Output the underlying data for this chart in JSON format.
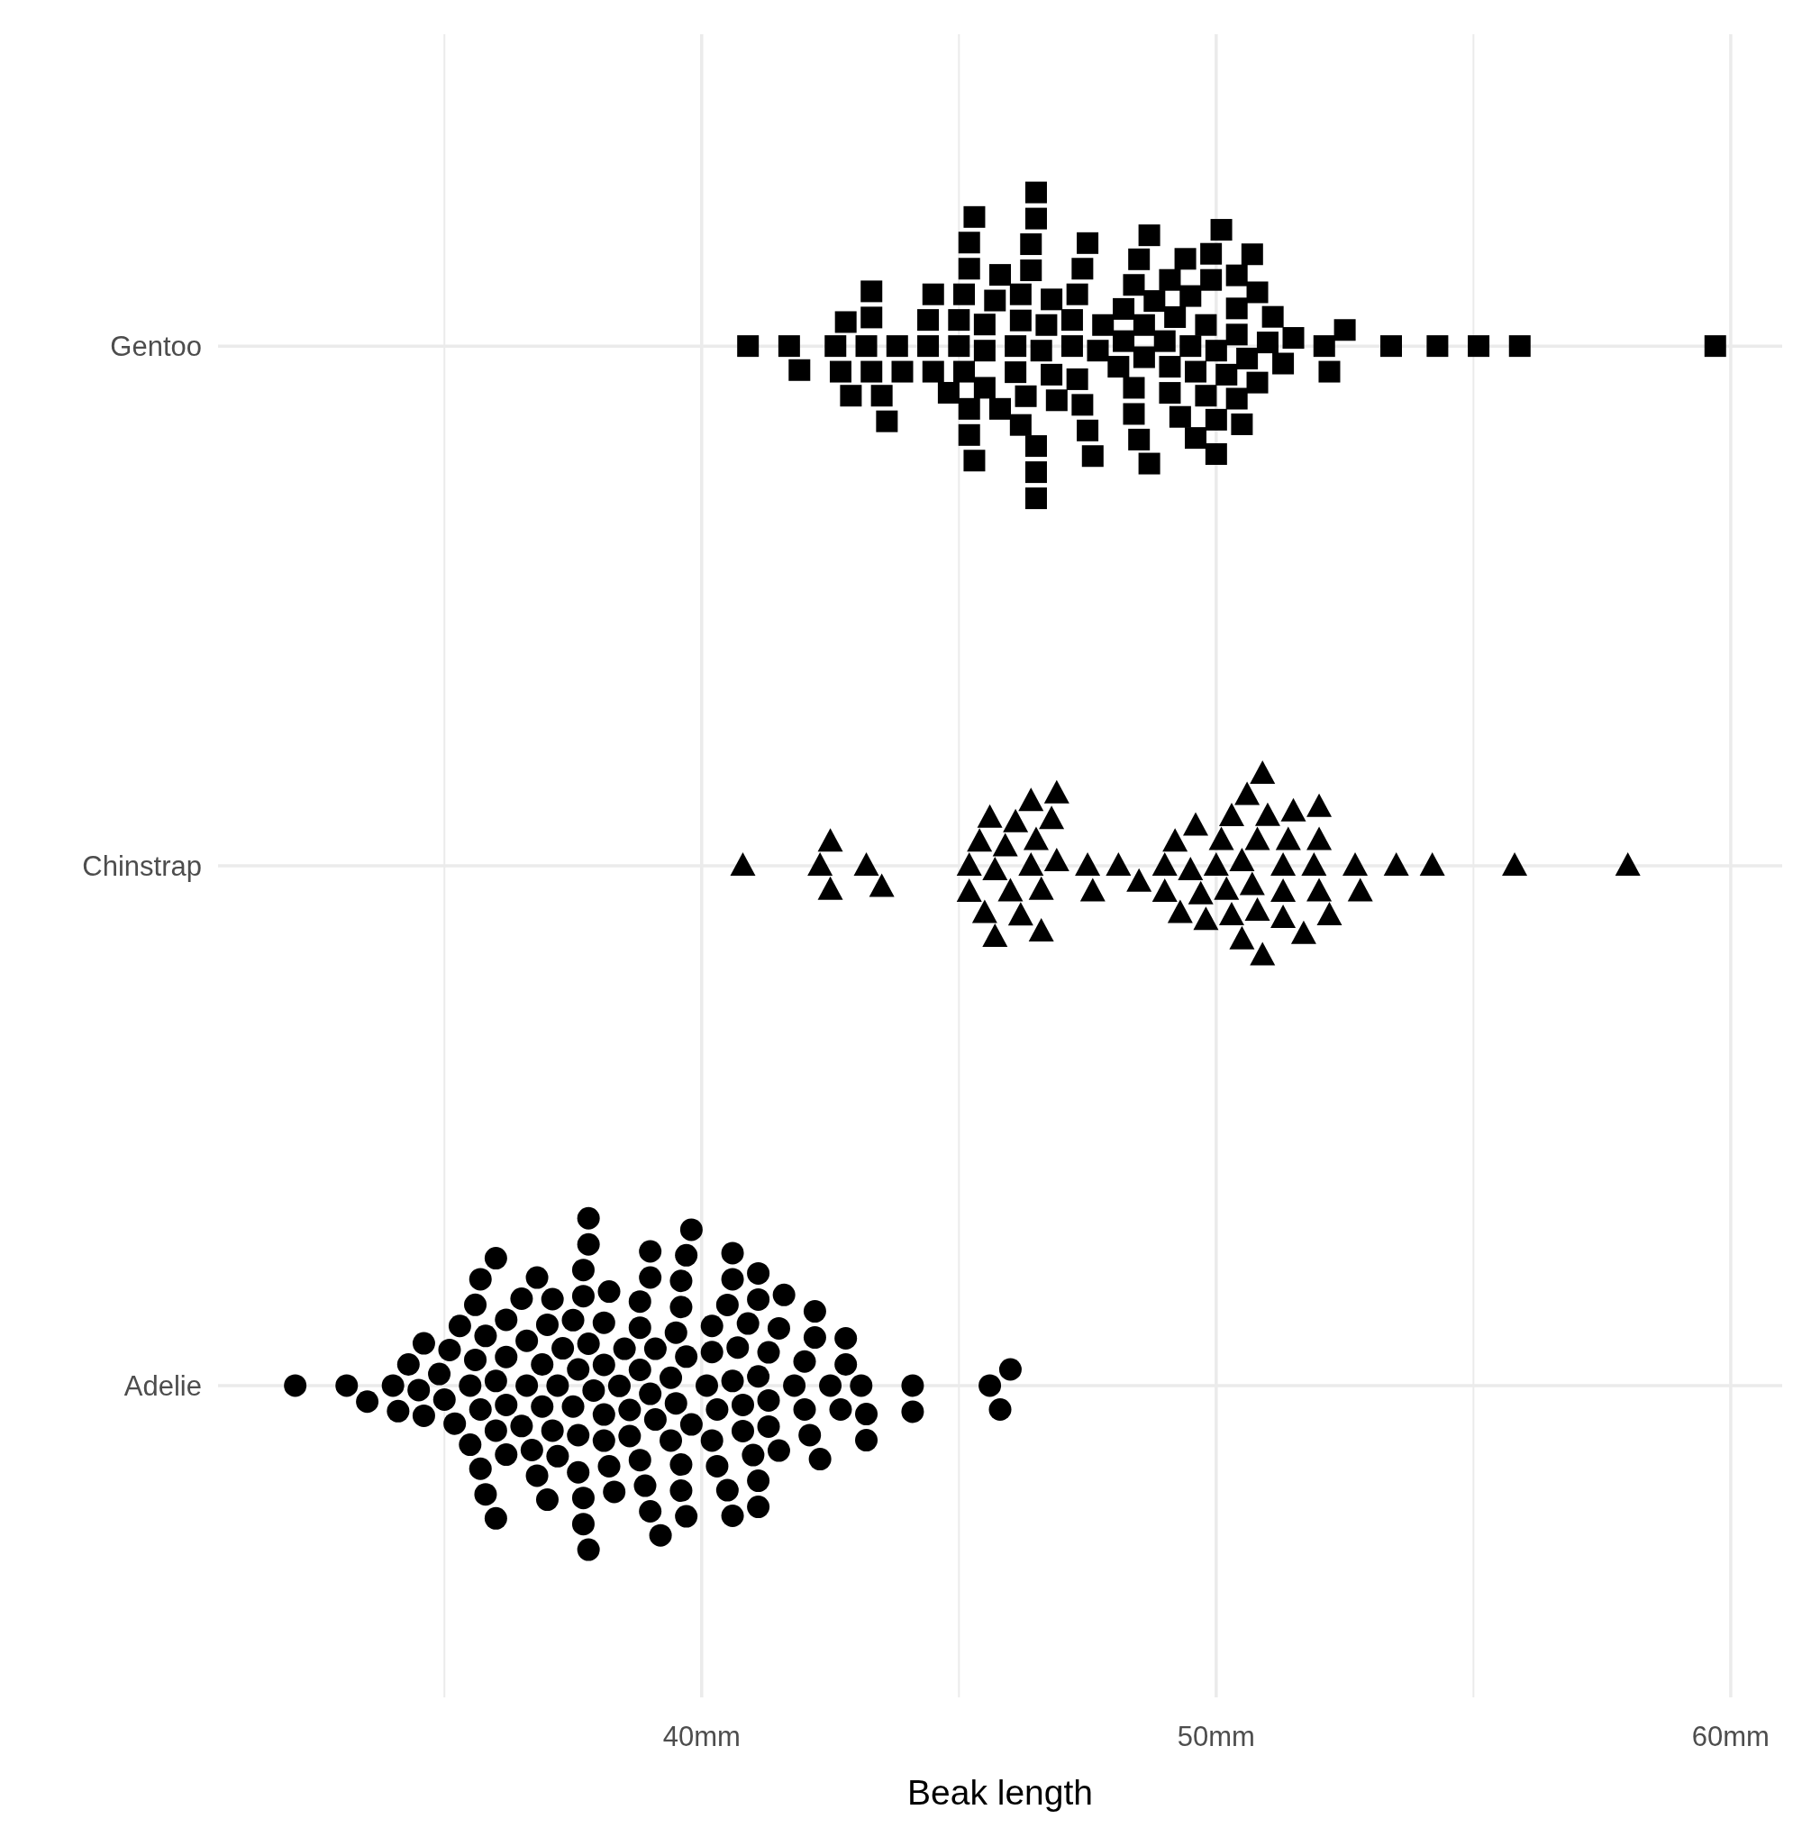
{
  "chart_data": {
    "type": "scatter",
    "orientation": "horizontal",
    "xlabel": "Beak length",
    "categories": [
      "Gentoo",
      "Chinstrap",
      "Adelie"
    ],
    "xlim": [
      30.6,
      61
    ],
    "xticks": [
      {
        "value": 35,
        "label": null
      },
      {
        "value": 40,
        "label": "40mm"
      },
      {
        "value": 45,
        "label": null
      },
      {
        "value": 50,
        "label": "50mm"
      },
      {
        "value": 55,
        "label": null
      },
      {
        "value": 60,
        "label": "60mm"
      }
    ],
    "grid": true,
    "series": [
      {
        "color": "#000000",
        "marker": "square",
        "x": [
          "Gentoo",
          "Gentoo",
          "Gentoo",
          "Gentoo",
          "Gentoo",
          "Gentoo",
          "Gentoo",
          "Gentoo",
          "Gentoo",
          "Gentoo",
          "Gentoo",
          "Gentoo",
          "Gentoo",
          "Gentoo",
          "Gentoo",
          "Gentoo",
          "Gentoo",
          "Gentoo",
          "Gentoo",
          "Gentoo",
          "Gentoo",
          "Gentoo",
          "Gentoo",
          "Gentoo",
          "Gentoo",
          "Gentoo",
          "Gentoo",
          "Gentoo",
          "Gentoo",
          "Gentoo",
          "Gentoo",
          "Gentoo",
          "Gentoo",
          "Gentoo",
          "Gentoo",
          "Gentoo",
          "Gentoo",
          "Gentoo",
          "Gentoo",
          "Gentoo",
          "Gentoo",
          "Gentoo",
          "Gentoo",
          "Gentoo",
          "Gentoo",
          "Gentoo",
          "Gentoo",
          "Gentoo",
          "Gentoo",
          "Gentoo",
          "Gentoo",
          "Gentoo",
          "Gentoo",
          "Gentoo",
          "Gentoo",
          "Gentoo",
          "Gentoo",
          "Gentoo",
          "Gentoo",
          "Gentoo",
          "Gentoo",
          "Gentoo",
          "Gentoo",
          "Gentoo",
          "Gentoo",
          "Gentoo",
          "Gentoo",
          "Gentoo",
          "Gentoo",
          "Gentoo",
          "Gentoo",
          "Gentoo",
          "Gentoo",
          "Gentoo",
          "Gentoo",
          "Gentoo",
          "Gentoo",
          "Gentoo",
          "Gentoo",
          "Gentoo",
          "Gentoo",
          "Gentoo",
          "Gentoo",
          "Gentoo",
          "Gentoo",
          "Gentoo",
          "Gentoo",
          "Gentoo",
          "Gentoo",
          "Gentoo",
          "Gentoo",
          "Gentoo",
          "Gentoo",
          "Gentoo",
          "Gentoo",
          "Gentoo",
          "Gentoo",
          "Gentoo",
          "Gentoo",
          "Gentoo",
          "Gentoo",
          "Gentoo",
          "Gentoo",
          "Gentoo",
          "Gentoo",
          "Gentoo",
          "Gentoo",
          "Gentoo",
          "Gentoo",
          "Gentoo",
          "Gentoo",
          "Gentoo",
          "Gentoo",
          "Gentoo",
          "Gentoo",
          "Gentoo",
          "Gentoo",
          "Gentoo",
          "Gentoo"
        ],
        "values": [
          45.3,
          46.3,
          49.8,
          45.8,
          46.7,
          47.3,
          48.6,
          49.1,
          45.0,
          45.2,
          46.5,
          46.9,
          50.2,
          49.5,
          45.5,
          46.5,
          48.1,
          48.4,
          48.8,
          50.8,
          50.4,
          45.2,
          46.2,
          46.5,
          47.2,
          47.5,
          49.6,
          50.0,
          50.6,
          43.8,
          42.9,
          43.3,
          44.4,
          44.8,
          45.5,
          46.8,
          47.7,
          48.5,
          49.1,
          50.0,
          50.7,
          51.5,
          43.5,
          41.9,
          42.7,
          43.3,
          44.4,
          45.2,
          46.1,
          46.4,
          48.2,
          48.7,
          49.3,
          50.4,
          51.1,
          52.2,
          53.4,
          55.1,
          55.9,
          40.9,
          41.7,
          42.8,
          43.6,
          45.1,
          46.2,
          47.3,
          47.5,
          48.5,
          49.6,
          50.0,
          50.8,
          52.5,
          54.3,
          59.7,
          42.6,
          43.3,
          44.5,
          45.7,
          46.6,
          47.8,
          48.4,
          49.1,
          50.1,
          50.5,
          51.3,
          52.1,
          49.4,
          43.2,
          43.9,
          44.5,
          45.1,
          46.1,
          46.5,
          47.4,
          48.6,
          49.9,
          50.4,
          51.0,
          49.5,
          45.2,
          46.2,
          47.2,
          47.6,
          48.4,
          49.0,
          49.9,
          50.4,
          45.5,
          46.5,
          46.8,
          48.2,
          49.2,
          45.0,
          47.4,
          48.7,
          49.8,
          45.8,
          46.4,
          45.3
        ]
      },
      {
        "color": "#000000",
        "marker": "triangle",
        "x": [
          "Chinstrap",
          "Chinstrap",
          "Chinstrap",
          "Chinstrap",
          "Chinstrap",
          "Chinstrap",
          "Chinstrap",
          "Chinstrap",
          "Chinstrap",
          "Chinstrap",
          "Chinstrap",
          "Chinstrap",
          "Chinstrap",
          "Chinstrap",
          "Chinstrap",
          "Chinstrap",
          "Chinstrap",
          "Chinstrap",
          "Chinstrap",
          "Chinstrap",
          "Chinstrap",
          "Chinstrap",
          "Chinstrap",
          "Chinstrap",
          "Chinstrap",
          "Chinstrap",
          "Chinstrap",
          "Chinstrap",
          "Chinstrap",
          "Chinstrap",
          "Chinstrap",
          "Chinstrap",
          "Chinstrap",
          "Chinstrap",
          "Chinstrap",
          "Chinstrap",
          "Chinstrap",
          "Chinstrap",
          "Chinstrap",
          "Chinstrap",
          "Chinstrap",
          "Chinstrap",
          "Chinstrap",
          "Chinstrap",
          "Chinstrap",
          "Chinstrap",
          "Chinstrap",
          "Chinstrap",
          "Chinstrap",
          "Chinstrap",
          "Chinstrap",
          "Chinstrap",
          "Chinstrap",
          "Chinstrap",
          "Chinstrap",
          "Chinstrap",
          "Chinstrap",
          "Chinstrap",
          "Chinstrap",
          "Chinstrap",
          "Chinstrap",
          "Chinstrap",
          "Chinstrap",
          "Chinstrap",
          "Chinstrap",
          "Chinstrap",
          "Chinstrap",
          "Chinstrap"
        ],
        "values": [
          50.8,
          51.4,
          46.0,
          50.1,
          50.5,
          46.8,
          51.0,
          49.0,
          52.0,
          45.6,
          46.4,
          45.2,
          49.6,
          50.6,
          51.3,
          52.0,
          52.7,
          45.7,
          47.6,
          46.6,
          49.8,
          48.5,
          50.3,
          51.7,
          42.5,
          43.2,
          45.4,
          46.2,
          46.9,
          50.9,
          49.3,
          40.8,
          43.5,
          49.0,
          52.2,
          53.5,
          54.2,
          55.8,
          58.0,
          42.3,
          42.5,
          45.9,
          46.6,
          47.5,
          48.1,
          50.7,
          51.3,
          50.0,
          51.9,
          45.5,
          46.4,
          49.5,
          50.3,
          52.0,
          52.8,
          50.9,
          45.2,
          45.7,
          46.5,
          46.9,
          49.2,
          49.7,
          50.5,
          51.3,
          51.5,
          46.1,
          50.2,
          50.8
        ]
      },
      {
        "color": "#000000",
        "marker": "circle",
        "x": [
          "Adelie",
          "Adelie",
          "Adelie",
          "Adelie",
          "Adelie",
          "Adelie",
          "Adelie",
          "Adelie",
          "Adelie",
          "Adelie",
          "Adelie",
          "Adelie",
          "Adelie",
          "Adelie",
          "Adelie",
          "Adelie",
          "Adelie",
          "Adelie",
          "Adelie",
          "Adelie",
          "Adelie",
          "Adelie",
          "Adelie",
          "Adelie",
          "Adelie",
          "Adelie",
          "Adelie",
          "Adelie",
          "Adelie",
          "Adelie",
          "Adelie",
          "Adelie",
          "Adelie",
          "Adelie",
          "Adelie",
          "Adelie",
          "Adelie",
          "Adelie",
          "Adelie",
          "Adelie",
          "Adelie",
          "Adelie",
          "Adelie",
          "Adelie",
          "Adelie",
          "Adelie",
          "Adelie",
          "Adelie",
          "Adelie",
          "Adelie",
          "Adelie",
          "Adelie",
          "Adelie",
          "Adelie",
          "Adelie",
          "Adelie",
          "Adelie",
          "Adelie",
          "Adelie",
          "Adelie",
          "Adelie",
          "Adelie",
          "Adelie",
          "Adelie",
          "Adelie",
          "Adelie",
          "Adelie",
          "Adelie",
          "Adelie",
          "Adelie",
          "Adelie",
          "Adelie",
          "Adelie",
          "Adelie",
          "Adelie",
          "Adelie",
          "Adelie",
          "Adelie",
          "Adelie",
          "Adelie",
          "Adelie",
          "Adelie",
          "Adelie",
          "Adelie",
          "Adelie",
          "Adelie",
          "Adelie",
          "Adelie",
          "Adelie",
          "Adelie",
          "Adelie",
          "Adelie",
          "Adelie",
          "Adelie",
          "Adelie",
          "Adelie",
          "Adelie",
          "Adelie",
          "Adelie",
          "Adelie",
          "Adelie",
          "Adelie",
          "Adelie",
          "Adelie",
          "Adelie",
          "Adelie",
          "Adelie",
          "Adelie",
          "Adelie",
          "Adelie",
          "Adelie",
          "Adelie",
          "Adelie",
          "Adelie",
          "Adelie",
          "Adelie",
          "Adelie",
          "Adelie",
          "Adelie",
          "Adelie",
          "Adelie",
          "Adelie",
          "Adelie",
          "Adelie",
          "Adelie",
          "Adelie",
          "Adelie",
          "Adelie",
          "Adelie",
          "Adelie",
          "Adelie",
          "Adelie",
          "Adelie",
          "Adelie",
          "Adelie",
          "Adelie",
          "Adelie",
          "Adelie",
          "Adelie",
          "Adelie",
          "Adelie",
          "Adelie",
          "Adelie",
          "Adelie"
        ],
        "values": [
          38.1,
          39.6,
          37.7,
          38.9,
          40.6,
          41.3,
          36.0,
          36.9,
          39.0,
          41.1,
          37.7,
          38.5,
          39.6,
          40.2,
          35.6,
          35.5,
          36.2,
          36.8,
          37.2,
          37.6,
          38.8,
          39.1,
          40.5,
          40.8,
          37.9,
          38.2,
          39.7,
          41.1,
          35.7,
          36.2,
          37.3,
          37.8,
          38.8,
          39.6,
          40.6,
          41.5,
          42.0,
          36.8,
          34.5,
          35.0,
          35.2,
          35.8,
          36.7,
          37.8,
          38.3,
          39.5,
          40.1,
          41.1,
          41.8,
          42.3,
          42.8,
          32.1,
          33.5,
          34.1,
          34.6,
          35.6,
          36.5,
          37.0,
          37.5,
          38.1,
          38.6,
          39.0,
          39.7,
          40.3,
          40.7,
          41.3,
          42.2,
          42.7,
          43.2,
          44.1,
          45.6,
          46.0,
          45.8,
          33.1,
          34.3,
          35.3,
          35.8,
          36.2,
          36.6,
          37.2,
          37.6,
          38.8,
          39.1,
          39.5,
          40.3,
          40.6,
          41.0,
          42.0,
          42.2,
          42.8,
          43.2,
          44.1,
          34.0,
          34.9,
          34.6,
          35.1,
          35.7,
          36.0,
          37.0,
          37.8,
          38.4,
          39.4,
          40.2,
          41.1,
          42.5,
          43.1,
          36.5,
          37.6,
          38.1,
          39.0,
          39.7,
          40.8,
          41.5,
          42.1,
          36.2,
          35.7,
          37.1,
          37.8,
          39.8,
          40.5,
          41.6,
          35.5,
          36.6,
          36.0,
          36.9,
          37.7,
          38.2,
          38.8,
          39.2,
          39.8,
          40.2,
          40.9,
          37.1,
          36.0,
          37.7,
          38.6,
          39.4,
          41.1,
          41.3,
          37.5,
          39.0,
          39.6,
          40.6,
          38.1
        ]
      }
    ]
  }
}
